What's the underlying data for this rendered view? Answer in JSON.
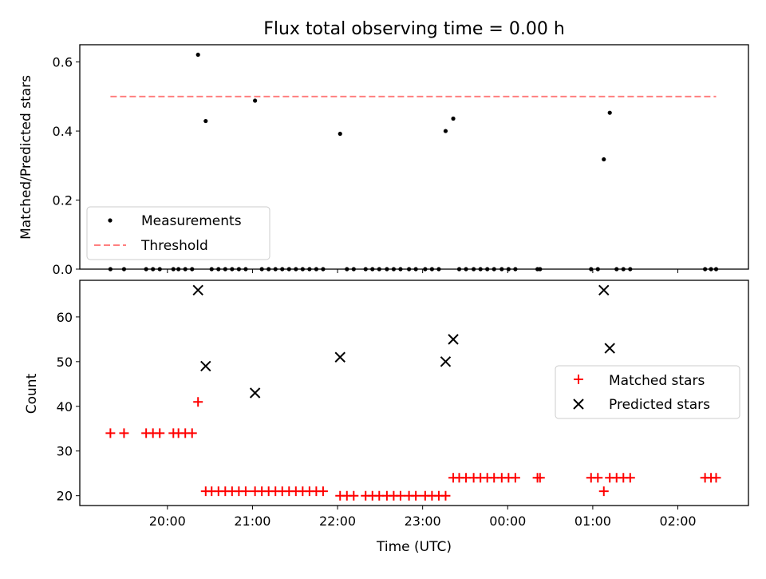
{
  "chart_data": [
    {
      "panel": "top",
      "type": "scatter",
      "title": "Flux total observing time = 0.00 h",
      "xlabel": "",
      "ylabel": "Matched/Predicted stars",
      "xlim": [
        18.97,
        26.83
      ],
      "ylim": [
        0,
        0.65
      ],
      "yticks": [
        0.0,
        0.2,
        0.4,
        0.6
      ],
      "ytick_labels": [
        "0.0",
        "0.2",
        "0.4",
        "0.6"
      ],
      "grid": false,
      "legend": {
        "position": "lower-left",
        "entries": [
          "Measurements",
          "Threshold"
        ]
      },
      "series": [
        {
          "name": "Measurements",
          "kind": "points",
          "color": "#000000",
          "x": [
            19.33,
            19.49,
            19.75,
            19.83,
            19.91,
            20.07,
            20.13,
            20.21,
            20.29,
            20.36,
            20.45,
            20.52,
            20.6,
            20.68,
            20.76,
            20.84,
            20.92,
            21.03,
            21.11,
            21.19,
            21.27,
            21.35,
            21.43,
            21.51,
            21.59,
            21.67,
            21.75,
            21.83,
            22.03,
            22.11,
            22.19,
            22.33,
            22.41,
            22.49,
            22.58,
            22.66,
            22.74,
            22.84,
            22.92,
            23.03,
            23.11,
            23.19,
            23.27,
            23.36,
            23.43,
            23.51,
            23.6,
            23.68,
            23.76,
            23.84,
            23.93,
            24.01,
            24.09,
            24.35,
            24.38,
            24.98,
            25.06,
            25.13,
            25.2,
            25.28,
            25.36,
            25.44,
            26.32,
            26.39,
            26.45
          ],
          "y": [
            0.0,
            0.0,
            0.0,
            0.0,
            0.0,
            0.0,
            0.0,
            0.0,
            0.0,
            0.621,
            0.429,
            0.0,
            0.0,
            0.0,
            0.0,
            0.0,
            0.0,
            0.488,
            0.0,
            0.0,
            0.0,
            0.0,
            0.0,
            0.0,
            0.0,
            0.0,
            0.0,
            0.0,
            0.392,
            0.0,
            0.0,
            0.0,
            0.0,
            0.0,
            0.0,
            0.0,
            0.0,
            0.0,
            0.0,
            0.0,
            0.0,
            0.0,
            0.4,
            0.436,
            0.0,
            0.0,
            0.0,
            0.0,
            0.0,
            0.0,
            0.0,
            0.0,
            0.0,
            0.0,
            0.0,
            0.0,
            0.0,
            0.318,
            0.453,
            0.0,
            0.0,
            0.0,
            0.0,
            0.0,
            0.0
          ]
        },
        {
          "name": "Threshold",
          "kind": "dashed-line",
          "color": "#ff7f7f",
          "x": [
            19.33,
            26.45
          ],
          "y": [
            0.5,
            0.5
          ]
        }
      ]
    },
    {
      "panel": "bottom",
      "type": "scatter",
      "title": "",
      "xlabel": "Time (UTC)",
      "ylabel": "Count",
      "xlim": [
        18.97,
        26.83
      ],
      "ylim": [
        17.8,
        68.2
      ],
      "xticks": [
        20,
        21,
        22,
        23,
        24,
        25,
        26
      ],
      "xtick_labels": [
        "20:00",
        "21:00",
        "22:00",
        "23:00",
        "00:00",
        "01:00",
        "02:00"
      ],
      "yticks": [
        20,
        30,
        40,
        50,
        60
      ],
      "ytick_labels": [
        "20",
        "30",
        "40",
        "50",
        "60"
      ],
      "grid": false,
      "legend": {
        "position": "center-right",
        "entries": [
          "Matched stars",
          "Predicted stars"
        ]
      },
      "series": [
        {
          "name": "Matched stars",
          "marker": "plus",
          "color": "#ff0000",
          "x": [
            19.33,
            19.49,
            19.75,
            19.83,
            19.91,
            20.07,
            20.13,
            20.21,
            20.29,
            20.36,
            20.45,
            20.52,
            20.6,
            20.68,
            20.76,
            20.84,
            20.92,
            21.03,
            21.11,
            21.19,
            21.27,
            21.35,
            21.43,
            21.51,
            21.59,
            21.67,
            21.75,
            21.83,
            22.03,
            22.11,
            22.19,
            22.33,
            22.41,
            22.49,
            22.58,
            22.66,
            22.74,
            22.84,
            22.92,
            23.03,
            23.11,
            23.19,
            23.27,
            23.36,
            23.43,
            23.51,
            23.6,
            23.68,
            23.76,
            23.84,
            23.93,
            24.01,
            24.09,
            24.35,
            24.38,
            24.98,
            25.06,
            25.13,
            25.2,
            25.28,
            25.36,
            25.44,
            26.32,
            26.39,
            26.45
          ],
          "y": [
            34,
            34,
            34,
            34,
            34,
            34,
            34,
            34,
            34,
            41,
            21,
            21,
            21,
            21,
            21,
            21,
            21,
            21,
            21,
            21,
            21,
            21,
            21,
            21,
            21,
            21,
            21,
            21,
            20,
            20,
            20,
            20,
            20,
            20,
            20,
            20,
            20,
            20,
            20,
            20,
            20,
            20,
            20,
            24,
            24,
            24,
            24,
            24,
            24,
            24,
            24,
            24,
            24,
            24,
            24,
            24,
            24,
            21,
            24,
            24,
            24,
            24,
            24,
            24,
            24
          ]
        },
        {
          "name": "Predicted stars",
          "marker": "x",
          "color": "#000000",
          "x": [
            20.36,
            20.45,
            21.03,
            22.03,
            23.27,
            23.36,
            25.13,
            25.2
          ],
          "y": [
            66,
            49,
            43,
            51,
            50,
            55,
            66,
            53
          ]
        }
      ]
    }
  ]
}
